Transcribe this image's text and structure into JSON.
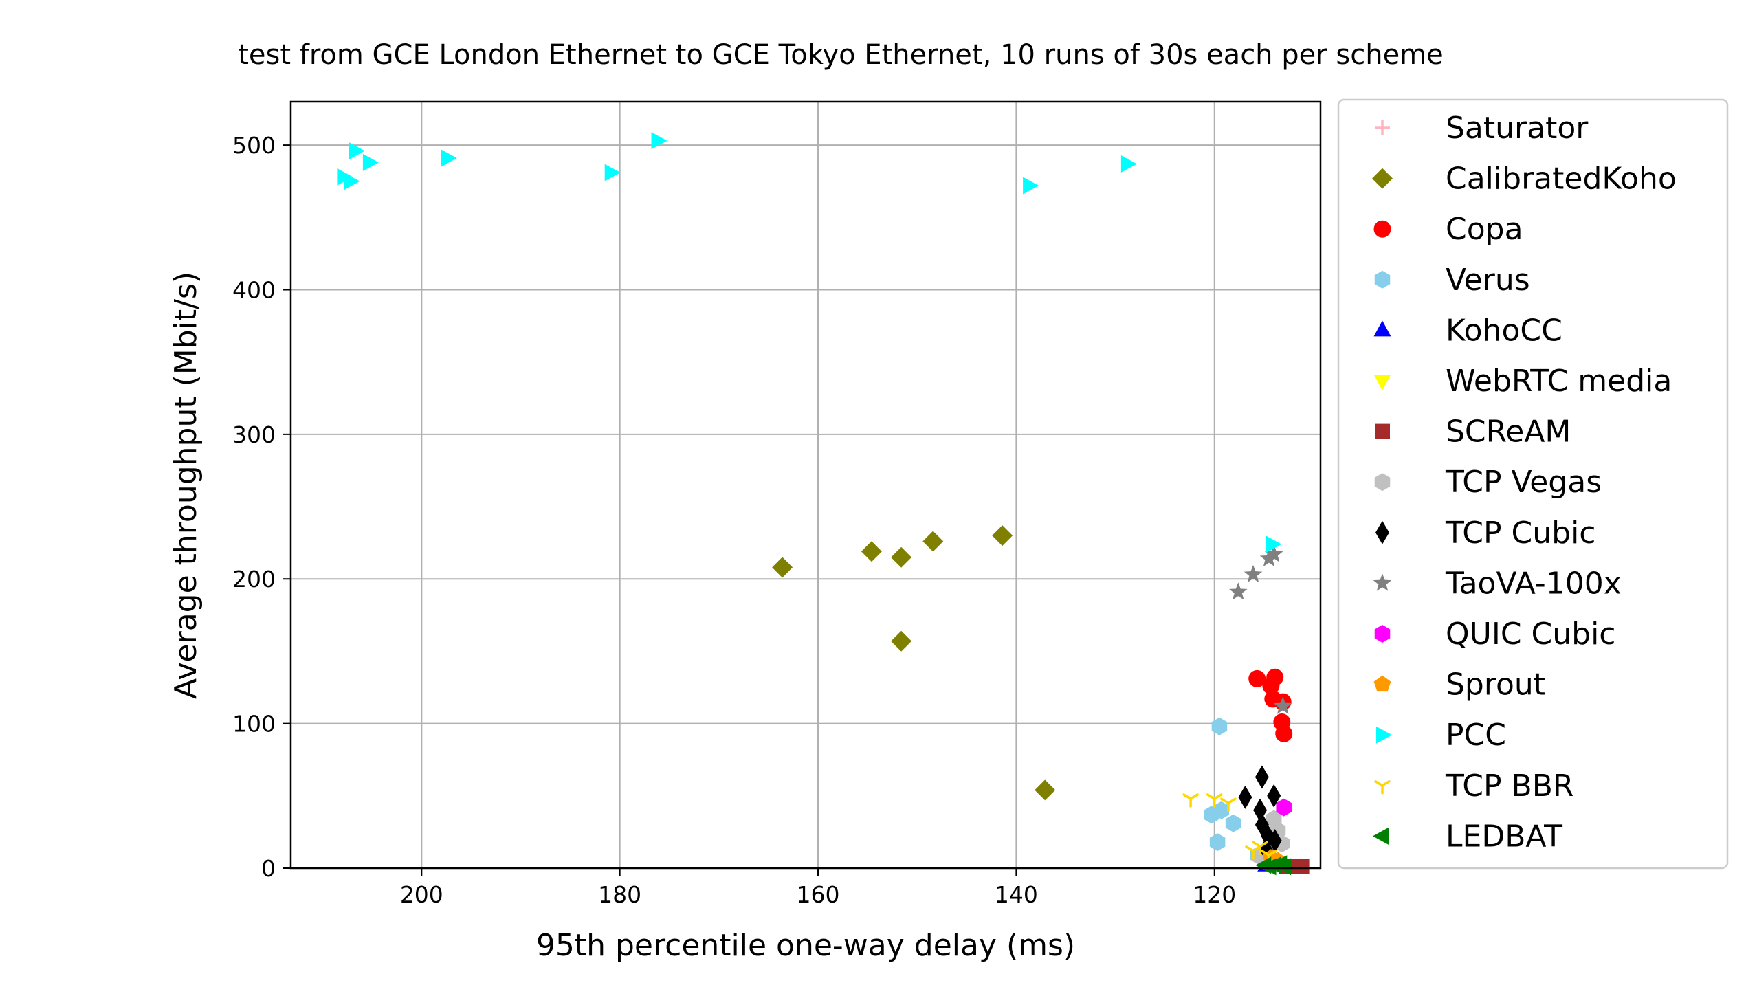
{
  "chart_data": {
    "type": "scatter",
    "title": "test from GCE London Ethernet to GCE Tokyo Ethernet, 10 runs of 30s each per scheme",
    "xlabel": "95th percentile one-way delay (ms)",
    "ylabel": "Average throughput (Mbit/s)",
    "xlim": [
      213.2,
      109.3
    ],
    "x_inverted": true,
    "ylim": [
      0,
      530
    ],
    "xticks": [
      200,
      180,
      160,
      140,
      120
    ],
    "yticks": [
      0,
      100,
      200,
      300,
      400,
      500
    ],
    "xtick_labels": [
      "200",
      "180",
      "160",
      "140",
      "120"
    ],
    "ytick_labels": [
      "0",
      "100",
      "200",
      "300",
      "400",
      "500"
    ],
    "grid": true,
    "legend_position": "outside-right",
    "series": [
      {
        "name": "Saturator",
        "color": "#ffb6c1",
        "marker": "plus",
        "points": [
          [
            114.6,
            3
          ],
          [
            114.0,
            2
          ]
        ]
      },
      {
        "name": "CalibratedKoho",
        "color": "#808000",
        "marker": "diamond",
        "points": [
          [
            163.6,
            208
          ],
          [
            154.6,
            219
          ],
          [
            151.6,
            215
          ],
          [
            151.6,
            157
          ],
          [
            148.4,
            226
          ],
          [
            141.4,
            230
          ],
          [
            137.1,
            54
          ]
        ]
      },
      {
        "name": "Copa",
        "color": "#ff0000",
        "marker": "circle",
        "points": [
          [
            115.7,
            131
          ],
          [
            114.3,
            126
          ],
          [
            113.9,
            132
          ],
          [
            114.1,
            117
          ],
          [
            113.1,
            115
          ],
          [
            113.2,
            101
          ],
          [
            113.0,
            93
          ]
        ]
      },
      {
        "name": "Verus",
        "color": "#87ceeb",
        "marker": "hexagon",
        "points": [
          [
            119.5,
            98
          ],
          [
            120.3,
            37
          ],
          [
            119.3,
            40
          ],
          [
            118.1,
            31
          ],
          [
            119.7,
            18
          ],
          [
            115.6,
            9
          ]
        ]
      },
      {
        "name": "KohoCC",
        "color": "#0000ff",
        "marker": "triangle-up",
        "points": [
          [
            114.8,
            2
          ],
          [
            114.2,
            3
          ]
        ]
      },
      {
        "name": "WebRTC media",
        "color": "#ffff00",
        "marker": "triangle-down",
        "points": [
          [
            114.4,
            6
          ],
          [
            113.6,
            4
          ]
        ]
      },
      {
        "name": "SCReAM",
        "color": "#a52a2a",
        "marker": "square",
        "points": [
          [
            111.2,
            1
          ],
          [
            112.0,
            1
          ],
          [
            112.7,
            1
          ],
          [
            111.7,
            1
          ]
        ]
      },
      {
        "name": "TCP Vegas",
        "color": "#c0c0c0",
        "marker": "hexagon",
        "points": [
          [
            114.0,
            34
          ],
          [
            113.6,
            26
          ],
          [
            114.6,
            12
          ],
          [
            115.4,
            8
          ],
          [
            113.2,
            17
          ]
        ]
      },
      {
        "name": "TCP Cubic",
        "color": "#000000",
        "marker": "thin-diamond",
        "points": [
          [
            115.2,
            63
          ],
          [
            116.9,
            49
          ],
          [
            115.4,
            40
          ],
          [
            115.2,
            30
          ],
          [
            114.0,
            50
          ],
          [
            114.6,
            22
          ],
          [
            113.9,
            19
          ],
          [
            114.8,
            13
          ]
        ]
      },
      {
        "name": "TaoVA-100x",
        "color": "#808080",
        "marker": "star",
        "points": [
          [
            117.6,
            191
          ],
          [
            116.1,
            203
          ],
          [
            114.5,
            214
          ],
          [
            114.0,
            217
          ],
          [
            113.1,
            112
          ]
        ]
      },
      {
        "name": "QUIC Cubic",
        "color": "#ff00ff",
        "marker": "hexagon",
        "points": [
          [
            113.0,
            42
          ]
        ]
      },
      {
        "name": "Sprout",
        "color": "#ff9900",
        "marker": "pentagon",
        "points": [
          [
            114.3,
            7
          ],
          [
            113.6,
            5
          ]
        ]
      },
      {
        "name": "PCC",
        "color": "#00ffff",
        "marker": "triangle-right",
        "points": [
          [
            207.9,
            478
          ],
          [
            206.7,
            496
          ],
          [
            207.2,
            475
          ],
          [
            205.3,
            488
          ],
          [
            197.4,
            491
          ],
          [
            180.9,
            481
          ],
          [
            176.2,
            503
          ],
          [
            138.7,
            472
          ],
          [
            128.8,
            487
          ],
          [
            114.2,
            224
          ]
        ]
      },
      {
        "name": "TCP BBR",
        "color": "#ffd700",
        "marker": "tri-down",
        "points": [
          [
            122.4,
            48
          ],
          [
            120.0,
            48
          ],
          [
            118.6,
            45
          ],
          [
            115.4,
            15
          ],
          [
            116.1,
            12
          ],
          [
            114.5,
            9
          ]
        ]
      },
      {
        "name": "LEDBAT",
        "color": "#008000",
        "marker": "triangle-left",
        "points": [
          [
            114.9,
            2
          ],
          [
            113.9,
            2
          ],
          [
            113.3,
            3
          ],
          [
            114.4,
            1
          ],
          [
            112.9,
            1
          ]
        ]
      }
    ]
  }
}
